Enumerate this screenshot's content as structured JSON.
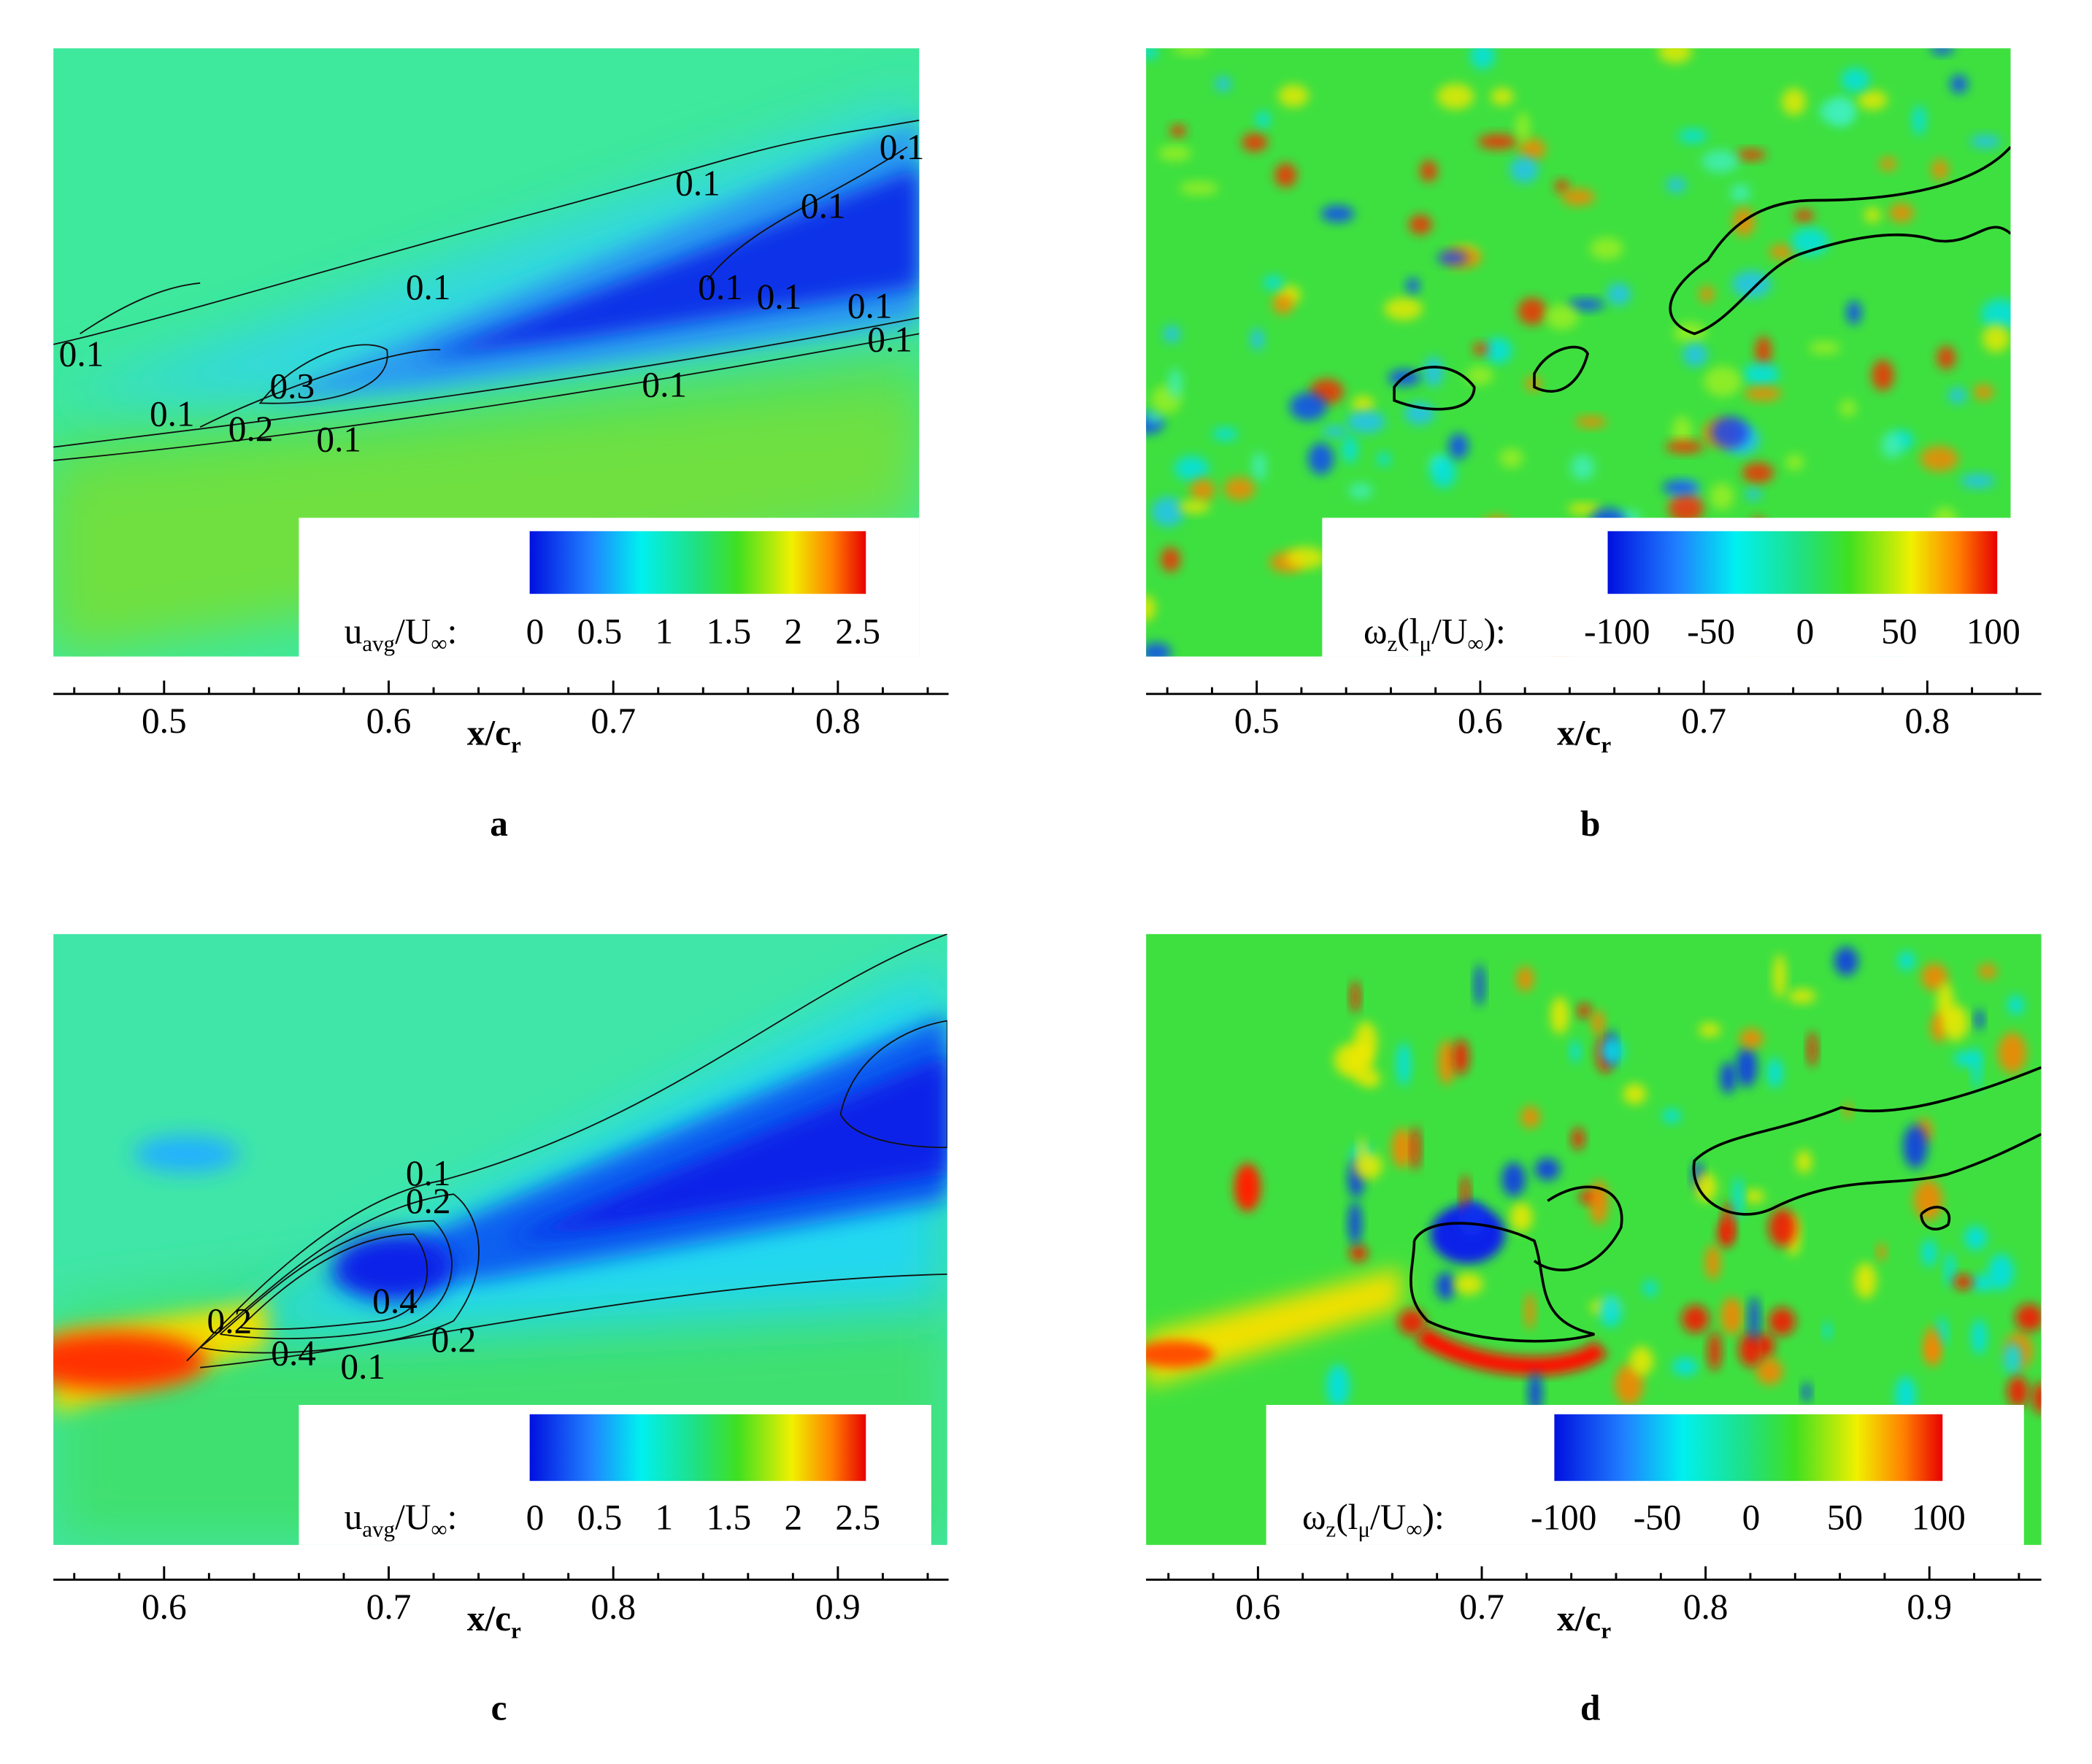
{
  "chart_data": [
    {
      "type": "contour",
      "label": "a",
      "xlabel": [
        "x/c",
        "r"
      ],
      "xlim": [
        0.4507,
        0.8493
      ],
      "xticks": [
        0.5,
        0.6,
        0.7,
        0.8
      ],
      "xminorticks": [
        0.46,
        0.48,
        0.52,
        0.54,
        0.56,
        0.58,
        0.62,
        0.64,
        0.66,
        0.68,
        0.72,
        0.74,
        0.76,
        0.78,
        0.82,
        0.84
      ],
      "colorbar": {
        "label": [
          "u",
          "avg",
          "/U",
          "∞",
          ":"
        ],
        "lim": [
          0,
          2.5
        ],
        "ticks": [
          0,
          0.5,
          1,
          1.5,
          2,
          2.5
        ]
      },
      "contour_labels": [
        0.1,
        0.1,
        0.1,
        0.1,
        0.1,
        0.1,
        0.1,
        0.1,
        0.1,
        0.3,
        0.1,
        0.1,
        0.2,
        0.1
      ]
    },
    {
      "type": "contour",
      "label": "b",
      "xlabel": [
        "x/c",
        "r"
      ],
      "xlim": [
        0.4505,
        0.851
      ],
      "xticks": [
        0.5,
        0.6,
        0.7,
        0.8
      ],
      "xminorticks": [
        0.46,
        0.48,
        0.52,
        0.54,
        0.56,
        0.58,
        0.62,
        0.64,
        0.66,
        0.68,
        0.72,
        0.74,
        0.76,
        0.78,
        0.82,
        0.84
      ],
      "colorbar": {
        "label": [
          "ω",
          "z",
          "(l",
          "μ",
          "/U",
          "∞",
          "):"
        ],
        "lim": [
          -100,
          100
        ],
        "ticks": [
          -100,
          -50,
          0,
          50,
          100
        ]
      },
      "contour_labels": []
    },
    {
      "type": "contour",
      "label": "c",
      "xlabel": [
        "x/c",
        "r"
      ],
      "xlim": [
        0.5507,
        0.9493
      ],
      "xticks": [
        0.6,
        0.7,
        0.8,
        0.9
      ],
      "xminorticks": [
        0.56,
        0.58,
        0.62,
        0.64,
        0.66,
        0.68,
        0.72,
        0.74,
        0.76,
        0.78,
        0.82,
        0.84,
        0.86,
        0.88,
        0.92,
        0.94
      ],
      "colorbar": {
        "label": [
          "u",
          "avg",
          "/U",
          "∞",
          ":"
        ],
        "lim": [
          0,
          2.5
        ],
        "ticks": [
          0,
          0.5,
          1,
          1.5,
          2,
          2.5
        ]
      },
      "contour_labels": [
        0.1,
        0.2,
        0.4,
        0.2,
        0.2,
        0.4,
        0.1
      ]
    },
    {
      "type": "contour",
      "label": "d",
      "xlabel": [
        "x/c",
        "r"
      ],
      "xlim": [
        0.55,
        0.95
      ],
      "xticks": [
        0.6,
        0.7,
        0.8,
        0.9
      ],
      "xminorticks": [
        0.56,
        0.58,
        0.62,
        0.64,
        0.66,
        0.68,
        0.72,
        0.74,
        0.76,
        0.78,
        0.82,
        0.84,
        0.86,
        0.88,
        0.92,
        0.94
      ],
      "colorbar": {
        "label": [
          "ω",
          "z",
          "(l",
          "μ",
          "/U",
          "∞",
          "):"
        ],
        "lim": [
          -100,
          100
        ],
        "ticks": [
          -100,
          -50,
          0,
          50,
          100
        ]
      },
      "contour_labels": []
    }
  ]
}
